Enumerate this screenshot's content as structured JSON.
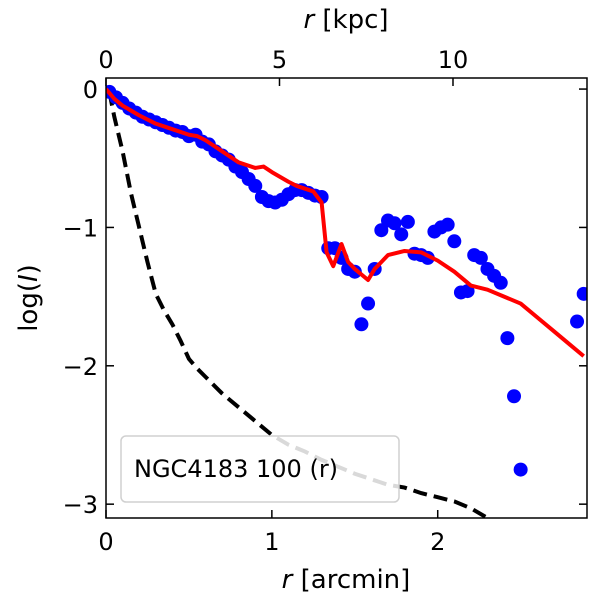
{
  "chart_data": {
    "type": "line",
    "title": "",
    "xlabel": "r [arcmin]",
    "xlabel_italic": "r",
    "xlabel_rest": " [arcmin]",
    "x2label": "r [kpc]",
    "x2label_italic": "r",
    "x2label_rest": " [kpc]",
    "ylabel": "log(I)",
    "ylabel_pre": "log(",
    "ylabel_italic": "I",
    "ylabel_post": ")",
    "xlim": [
      0,
      2.9
    ],
    "ylim": [
      -3.1,
      0.08
    ],
    "xticks": [
      0,
      1,
      2
    ],
    "xtick_labels": [
      "0",
      "1",
      "2"
    ],
    "x2ticks_kpc": [
      0,
      5,
      10
    ],
    "x2tick_labels": [
      "0",
      "5",
      "10"
    ],
    "kpc_per_arcmin": 4.78,
    "yticks": [
      0,
      -1,
      -2,
      -3
    ],
    "ytick_labels": [
      "0",
      "−1",
      "−2",
      "−3"
    ],
    "legend_text": "NGC4183 100 (r)",
    "legend_position": "lower-left",
    "colors": {
      "data": "#0000ff",
      "model": "#ff0000",
      "psf": "#000000",
      "psf_faded": "#c8c8c8"
    },
    "series": [
      {
        "name": "observed",
        "kind": "scatter",
        "x": [
          0.02,
          0.06,
          0.1,
          0.14,
          0.18,
          0.22,
          0.26,
          0.3,
          0.34,
          0.38,
          0.42,
          0.46,
          0.5,
          0.54,
          0.58,
          0.62,
          0.66,
          0.7,
          0.74,
          0.78,
          0.82,
          0.86,
          0.9,
          0.94,
          0.98,
          1.02,
          1.06,
          1.1,
          1.14,
          1.18,
          1.22,
          1.26,
          1.3,
          1.34,
          1.38,
          1.42,
          1.46,
          1.5,
          1.54,
          1.58,
          1.62,
          1.66,
          1.7,
          1.74,
          1.78,
          1.82,
          1.86,
          1.9,
          1.94,
          1.98,
          2.02,
          2.06,
          2.1,
          2.14,
          2.18,
          2.22,
          2.26,
          2.3,
          2.34,
          2.38,
          2.42,
          2.46,
          2.5,
          2.84,
          2.88
        ],
        "y": [
          -0.02,
          -0.06,
          -0.1,
          -0.14,
          -0.17,
          -0.2,
          -0.22,
          -0.24,
          -0.26,
          -0.28,
          -0.3,
          -0.31,
          -0.34,
          -0.33,
          -0.38,
          -0.4,
          -0.45,
          -0.48,
          -0.51,
          -0.56,
          -0.6,
          -0.65,
          -0.7,
          -0.78,
          -0.81,
          -0.82,
          -0.8,
          -0.76,
          -0.73,
          -0.73,
          -0.75,
          -0.77,
          -0.78,
          -1.15,
          -1.15,
          -1.22,
          -1.3,
          -1.32,
          -1.7,
          -1.55,
          -1.3,
          -1.02,
          -0.95,
          -0.97,
          -1.05,
          -0.96,
          -1.19,
          -1.2,
          -1.22,
          -1.03,
          -1.0,
          -0.98,
          -1.1,
          -1.47,
          -1.46,
          -1.2,
          -1.22,
          -1.3,
          -1.35,
          -1.4,
          -1.8,
          -2.22,
          -2.75,
          -1.68,
          -1.48
        ]
      },
      {
        "name": "model",
        "kind": "line",
        "x": [
          0.0,
          0.05,
          0.1,
          0.2,
          0.3,
          0.4,
          0.5,
          0.55,
          0.6,
          0.7,
          0.8,
          0.9,
          0.95,
          1.0,
          1.1,
          1.15,
          1.2,
          1.25,
          1.3,
          1.33,
          1.37,
          1.42,
          1.46,
          1.5,
          1.55,
          1.58,
          1.62,
          1.7,
          1.8,
          1.9,
          2.0,
          2.1,
          2.2,
          2.3,
          2.4,
          2.5,
          2.6,
          2.7,
          2.8,
          2.88
        ],
        "y": [
          0.0,
          -0.07,
          -0.12,
          -0.19,
          -0.25,
          -0.29,
          -0.33,
          -0.34,
          -0.37,
          -0.45,
          -0.53,
          -0.57,
          -0.56,
          -0.6,
          -0.67,
          -0.7,
          -0.72,
          -0.74,
          -0.82,
          -1.18,
          -1.28,
          -1.12,
          -1.25,
          -1.3,
          -1.35,
          -1.38,
          -1.3,
          -1.2,
          -1.17,
          -1.18,
          -1.24,
          -1.32,
          -1.42,
          -1.45,
          -1.5,
          -1.55,
          -1.65,
          -1.75,
          -1.85,
          -1.93
        ]
      },
      {
        "name": "psf",
        "kind": "dashed-line",
        "x": [
          0.02,
          0.05,
          0.1,
          0.15,
          0.2,
          0.25,
          0.3,
          0.35,
          0.4,
          0.45,
          0.5,
          0.55,
          0.6,
          0.7,
          0.8,
          0.9,
          1.0,
          1.1,
          1.2,
          1.3,
          1.4,
          1.5,
          1.6,
          1.7,
          1.8,
          1.9,
          2.0,
          2.1,
          2.2,
          2.3
        ],
        "y": [
          -0.02,
          -0.2,
          -0.45,
          -0.75,
          -1.0,
          -1.25,
          -1.48,
          -1.6,
          -1.7,
          -1.82,
          -1.95,
          -2.02,
          -2.08,
          -2.2,
          -2.3,
          -2.4,
          -2.5,
          -2.57,
          -2.62,
          -2.68,
          -2.73,
          -2.78,
          -2.82,
          -2.86,
          -2.88,
          -2.92,
          -2.95,
          -2.98,
          -3.03,
          -3.1
        ]
      }
    ]
  }
}
